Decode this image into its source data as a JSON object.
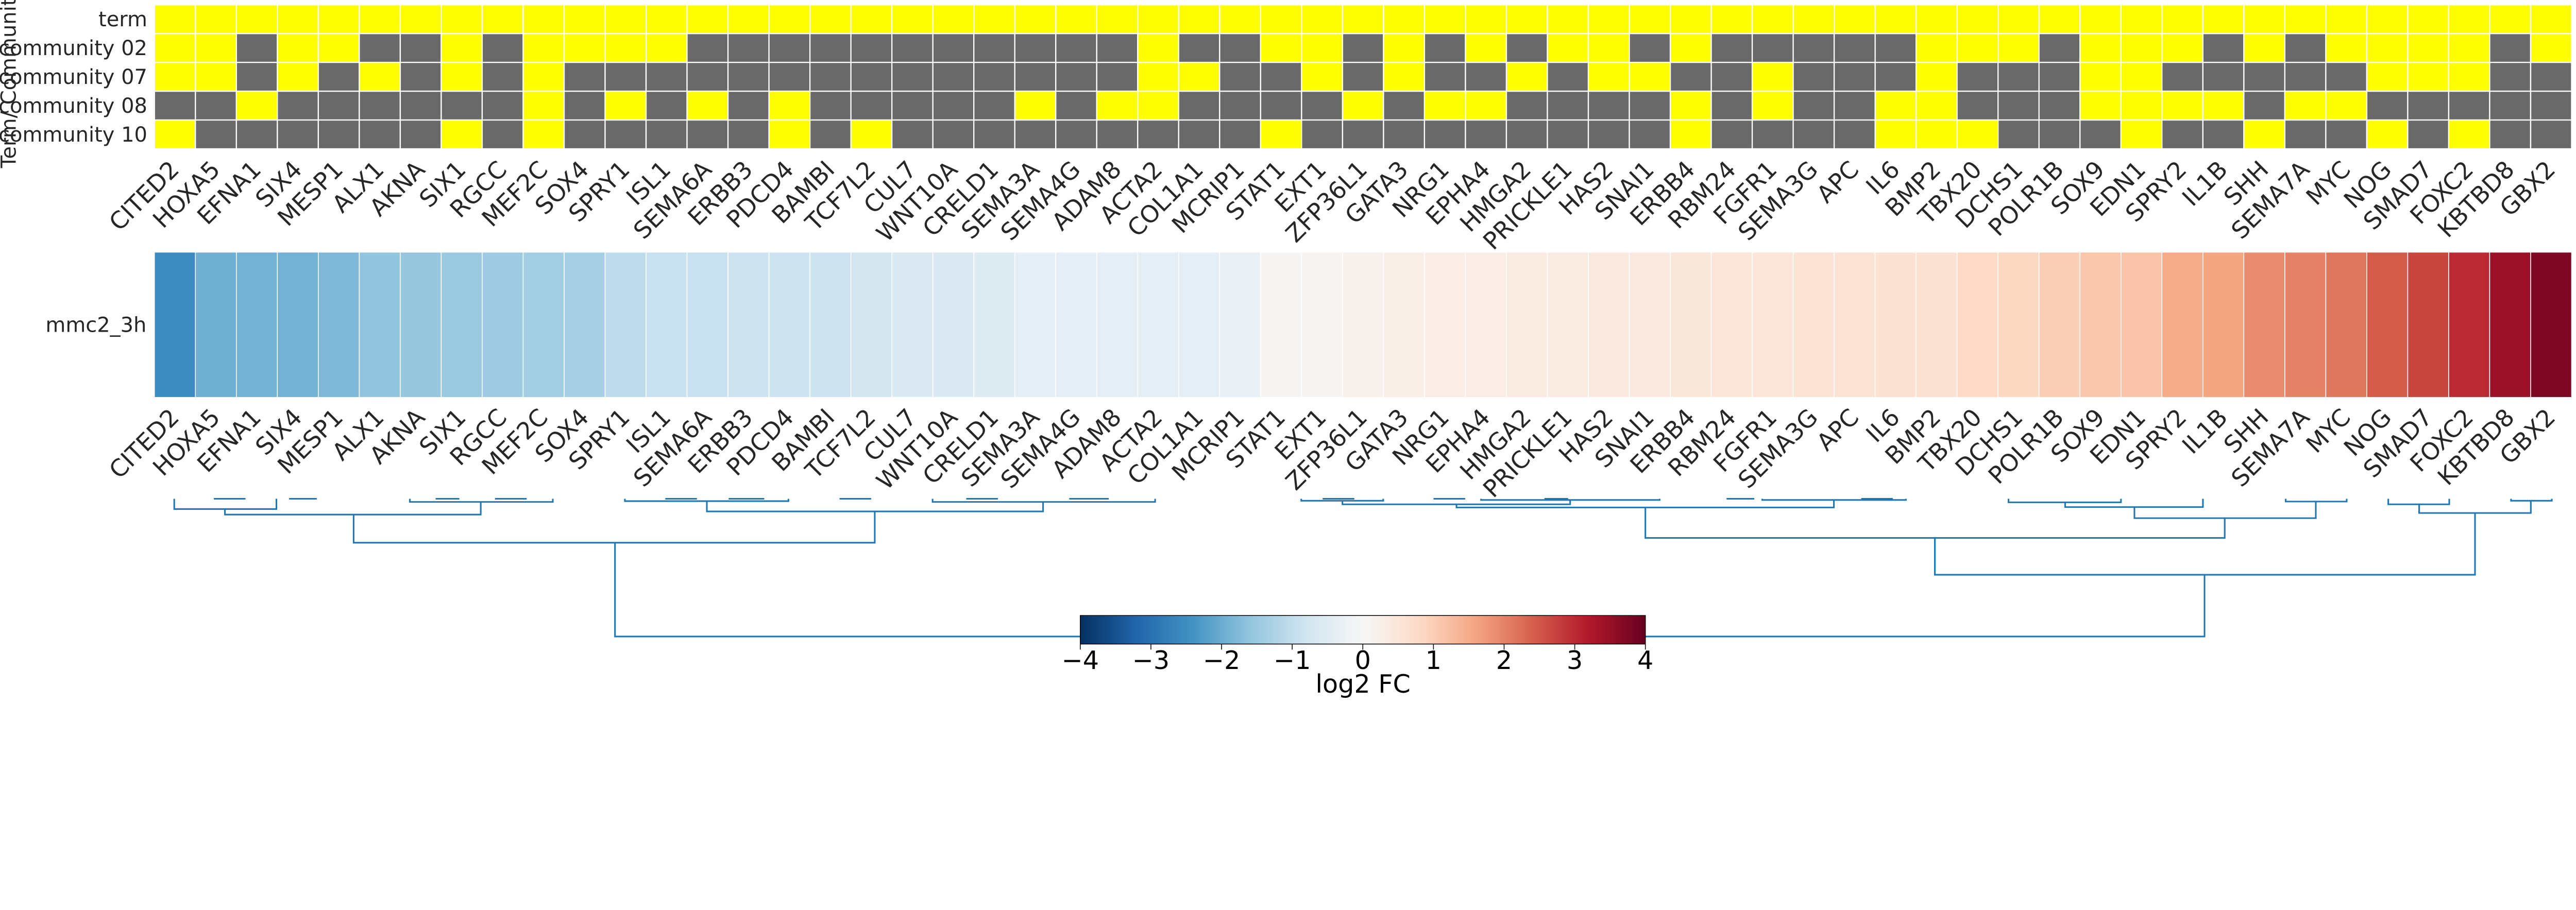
{
  "chart_data": [
    {
      "type": "heatmap",
      "ylabel": "Term/ Community",
      "rows": [
        "term",
        "community 02",
        "community 07",
        "community 08",
        "community 10"
      ],
      "columns": [
        "CITED2",
        "HOXA5",
        "EFNA1",
        "SIX4",
        "MESP1",
        "ALX1",
        "AKNA",
        "SIX1",
        "RGCC",
        "MEF2C",
        "SOX4",
        "SPRY1",
        "ISL1",
        "SEMA6A",
        "ERBB3",
        "PDCD4",
        "BAMBI",
        "TCF7L2",
        "CUL7",
        "WNT10A",
        "CRELD1",
        "SEMA3A",
        "SEMA4G",
        "ADAM8",
        "ACTA2",
        "COL1A1",
        "MCRIP1",
        "STAT1",
        "EXT1",
        "ZFP36L1",
        "GATA3",
        "NRG1",
        "EPHA4",
        "HMGA2",
        "PRICKLE1",
        "HAS2",
        "SNAI1",
        "ERBB4",
        "RBM24",
        "FGFR1",
        "SEMA3G",
        "APC",
        "IL6",
        "BMP2",
        "TBX20",
        "DCHS1",
        "POLR1B",
        "SOX9",
        "EDN1",
        "SPRY2",
        "IL1B",
        "SHH",
        "SEMA7A",
        "MYC",
        "NOG",
        "SMAD7",
        "FOXC2",
        "KBTBD8",
        "GBX2"
      ],
      "values": [
        [
          1,
          1,
          1,
          1,
          1,
          1,
          1,
          1,
          1,
          1,
          1,
          1,
          1,
          1,
          1,
          1,
          1,
          1,
          1,
          1,
          1,
          1,
          1,
          1,
          1,
          1,
          1,
          1,
          1,
          1,
          1,
          1,
          1,
          1,
          1,
          1,
          1,
          1,
          1,
          1,
          1,
          1,
          1,
          1,
          1,
          1,
          1,
          1,
          1,
          1,
          1,
          1,
          1,
          1,
          1,
          1,
          1,
          1,
          1
        ],
        [
          1,
          1,
          0,
          1,
          1,
          0,
          0,
          1,
          0,
          1,
          1,
          1,
          1,
          0,
          0,
          0,
          0,
          0,
          0,
          0,
          0,
          0,
          0,
          0,
          1,
          0,
          0,
          1,
          1,
          0,
          1,
          0,
          1,
          0,
          1,
          1,
          0,
          1,
          0,
          0,
          0,
          0,
          0,
          1,
          1,
          1,
          0,
          1,
          1,
          1,
          0,
          1,
          0,
          1,
          1,
          1,
          1,
          0,
          1
        ],
        [
          1,
          1,
          0,
          1,
          0,
          1,
          0,
          1,
          0,
          1,
          0,
          0,
          0,
          0,
          0,
          0,
          0,
          0,
          0,
          0,
          0,
          0,
          0,
          0,
          1,
          1,
          0,
          0,
          1,
          0,
          1,
          0,
          0,
          1,
          0,
          1,
          1,
          0,
          0,
          1,
          0,
          0,
          0,
          1,
          0,
          0,
          0,
          1,
          1,
          0,
          0,
          0,
          0,
          0,
          1,
          1,
          1,
          0,
          0
        ],
        [
          0,
          0,
          1,
          0,
          0,
          0,
          0,
          0,
          0,
          1,
          0,
          1,
          0,
          1,
          0,
          1,
          0,
          0,
          0,
          0,
          0,
          1,
          0,
          1,
          1,
          0,
          0,
          0,
          0,
          1,
          0,
          1,
          1,
          0,
          0,
          0,
          0,
          1,
          0,
          1,
          0,
          0,
          1,
          1,
          0,
          0,
          0,
          1,
          1,
          1,
          1,
          0,
          1,
          1,
          0,
          0,
          0,
          0,
          0
        ],
        [
          1,
          0,
          0,
          0,
          0,
          0,
          0,
          1,
          0,
          1,
          0,
          0,
          0,
          0,
          0,
          1,
          0,
          1,
          0,
          0,
          0,
          0,
          0,
          0,
          0,
          0,
          0,
          1,
          0,
          0,
          0,
          0,
          0,
          0,
          0,
          0,
          0,
          1,
          0,
          0,
          0,
          0,
          1,
          1,
          1,
          0,
          0,
          0,
          1,
          0,
          0,
          1,
          0,
          0,
          1,
          0,
          1,
          0,
          0
        ]
      ],
      "colors": {
        "member": "#ffff00",
        "non_member": "#696969"
      }
    },
    {
      "type": "heatmap",
      "rows": [
        "mmc2_3h"
      ],
      "columns": [
        "CITED2",
        "HOXA5",
        "EFNA1",
        "SIX4",
        "MESP1",
        "ALX1",
        "AKNA",
        "SIX1",
        "RGCC",
        "MEF2C",
        "SOX4",
        "SPRY1",
        "ISL1",
        "SEMA6A",
        "ERBB3",
        "PDCD4",
        "BAMBI",
        "TCF7L2",
        "CUL7",
        "WNT10A",
        "CRELD1",
        "SEMA3A",
        "SEMA4G",
        "ADAM8",
        "ACTA2",
        "COL1A1",
        "MCRIP1",
        "STAT1",
        "EXT1",
        "ZFP36L1",
        "GATA3",
        "NRG1",
        "EPHA4",
        "HMGA2",
        "PRICKLE1",
        "HAS2",
        "SNAI1",
        "ERBB4",
        "RBM24",
        "FGFR1",
        "SEMA3G",
        "APC",
        "IL6",
        "BMP2",
        "TBX20",
        "DCHS1",
        "POLR1B",
        "SOX9",
        "EDN1",
        "SPRY2",
        "IL1B",
        "SHH",
        "SEMA7A",
        "MYC",
        "NOG",
        "SMAD7",
        "FOXC2",
        "KBTBD8",
        "GBX2"
      ],
      "values": [
        [
          -2.55,
          -1.95,
          -1.9,
          -1.9,
          -1.8,
          -1.6,
          -1.55,
          -1.5,
          -1.45,
          -1.4,
          -1.35,
          -1.05,
          -0.9,
          -0.9,
          -0.85,
          -0.85,
          -0.85,
          -0.75,
          -0.6,
          -0.6,
          -0.55,
          -0.4,
          -0.4,
          -0.4,
          -0.4,
          -0.4,
          -0.3,
          0.05,
          0.1,
          0.15,
          0.25,
          0.3,
          0.3,
          0.35,
          0.35,
          0.4,
          0.4,
          0.45,
          0.5,
          0.5,
          0.55,
          0.55,
          0.6,
          0.6,
          0.8,
          0.85,
          1.0,
          1.1,
          1.15,
          1.5,
          1.6,
          1.9,
          2.0,
          2.15,
          2.45,
          2.7,
          3.0,
          3.45,
          3.75
        ]
      ],
      "colormap": "RdBu_r",
      "vmin": -4,
      "vmax": 4,
      "column_dendrogram": true,
      "dendrogram_color": "#1f77b4",
      "colorbar": {
        "label": "log2 FC",
        "ticks": [
          "−4",
          "−3",
          "−2",
          "−1",
          "0",
          "1",
          "2",
          "3",
          "4"
        ],
        "orientation": "horizontal",
        "placement": "bottom-center"
      }
    }
  ]
}
